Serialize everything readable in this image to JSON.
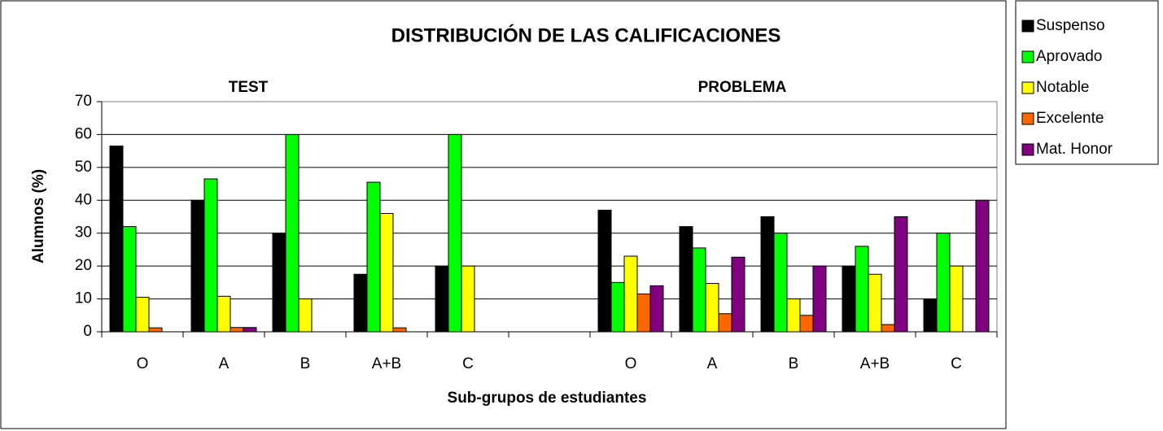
{
  "chart_data": {
    "type": "bar",
    "title": "DISTRIBUCIÓN DE LAS CALIFICACIONES",
    "annotations": [
      "TEST",
      "PROBLEMA"
    ],
    "x_label": "Sub-grupos de estudiantes",
    "y_label": "Alumnos (%)",
    "categories": [
      "O",
      "A",
      "B",
      "A+B",
      "C",
      null,
      "O",
      "A",
      "B",
      "A+B",
      "C"
    ],
    "series": [
      {
        "name": "Suspenso",
        "color": "#000000",
        "values": [
          56.5,
          40,
          30,
          17.5,
          20,
          null,
          37,
          32,
          35,
          20,
          10
        ]
      },
      {
        "name": "Aprovado",
        "color": "#00ff00",
        "values": [
          32,
          46.5,
          60,
          45.5,
          60,
          null,
          15,
          25.5,
          30,
          26,
          30
        ]
      },
      {
        "name": "Notable",
        "color": "#ffff00",
        "values": [
          10.5,
          10.8,
          10,
          36,
          20,
          null,
          23,
          14.7,
          10,
          17.5,
          20
        ]
      },
      {
        "name": "Excelente",
        "color": "#ff6600",
        "values": [
          1.2,
          1.3,
          0,
          1.2,
          0,
          null,
          11.5,
          5.5,
          5,
          2.2,
          0
        ]
      },
      {
        "name": "Mat. Honor",
        "color": "#800080",
        "values": [
          0,
          1.3,
          0,
          0,
          0,
          null,
          14,
          22.7,
          20,
          35,
          40
        ]
      }
    ],
    "ylim": [
      0,
      70
    ],
    "yticks": [
      0,
      10,
      20,
      30,
      40,
      50,
      60,
      70
    ],
    "grid": true,
    "legend": "right"
  }
}
